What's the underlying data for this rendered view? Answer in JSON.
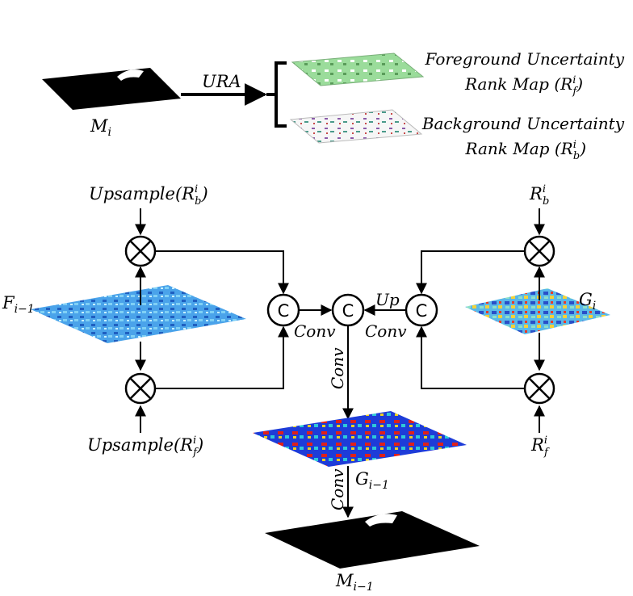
{
  "top": {
    "mask_label": {
      "base": "M",
      "sub": "i"
    },
    "ura_label": "URA",
    "fg_line1": "Foreground Uncertainty",
    "fg_line2": "Rank Map (R",
    "fg_sup": "i",
    "fg_sub": "f",
    "fg_close": ")",
    "bg_line1": "Background Uncertainty",
    "bg_line2": "Rank Map (R",
    "bg_sup": "i",
    "bg_sub": "b",
    "bg_close": ")"
  },
  "left": {
    "up_b_text": "Upsample(R",
    "up_b_sup": "i",
    "up_b_sub": "b",
    "up_close": ")",
    "up_f_text": "Upsample(R",
    "up_f_sup": "i",
    "up_f_sub": "f",
    "feat_base": "F",
    "feat_sub": "i−1"
  },
  "right": {
    "rb_base": "R",
    "rb_sup": "i",
    "rb_sub": "b",
    "rf_base": "R",
    "rf_sup": "i",
    "rf_sub": "f",
    "g_base": "G",
    "g_sub": "i"
  },
  "center": {
    "concat_symbol": "C",
    "conv_label": "Conv",
    "up_label": "Up",
    "g_out_base": "G",
    "g_out_sub": "i−1",
    "m_out_base": "M",
    "m_out_sub": "i−1"
  },
  "colors": {
    "mask_fill": "#000000",
    "fg_map": "#8fd68f",
    "bg_map": "#f4f4f4",
    "feat_blue": "#3a8fe0",
    "heat_blue": "#1e3cd8",
    "heat_red": "#e0201a"
  }
}
